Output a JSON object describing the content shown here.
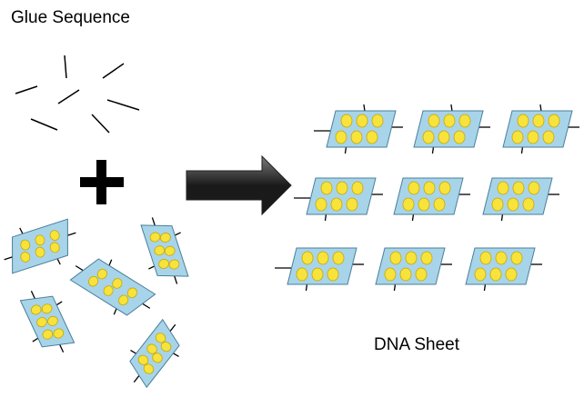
{
  "labels": {
    "glue_sequence": "Glue Sequence",
    "dna_sheet": "DNA Sheet"
  },
  "colors": {
    "tile_fill": "#a8d4ea",
    "tile_stroke": "#4a7f99",
    "dot_fill": "#f7e33b",
    "dot_stroke": "#c8a800",
    "line": "#000000",
    "arrow_dark": "#1a1a1a",
    "arrow_light": "#7a7a7a"
  },
  "icons": {
    "plus": "plus-icon",
    "arrow": "right-arrow-icon"
  }
}
